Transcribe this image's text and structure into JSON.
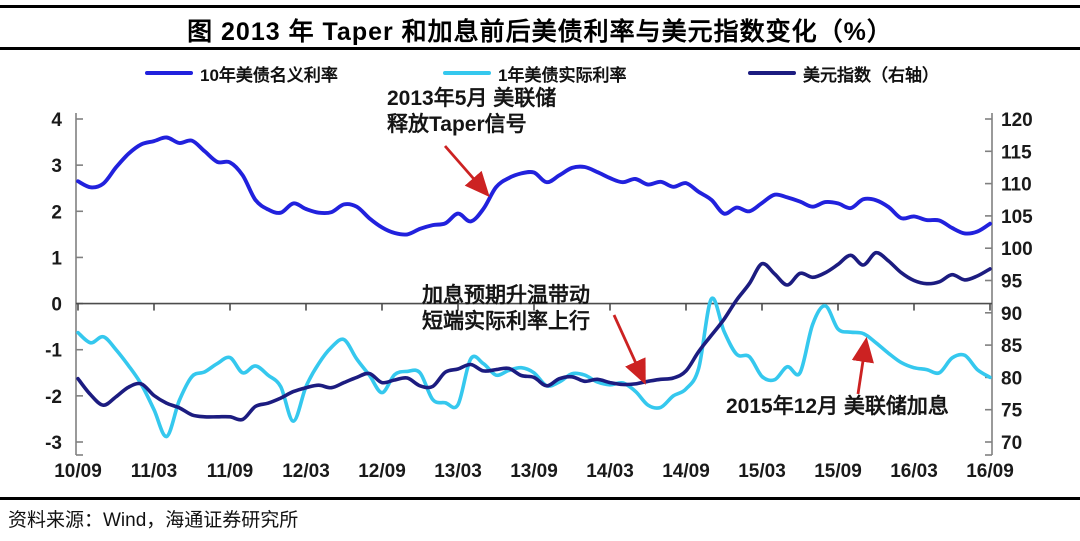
{
  "title": "图 2013 年 Taper 和加息前后美债利率与美元指数变化（%）",
  "legend": [
    {
      "label": "10年美债名义利率",
      "color": "#2121dd"
    },
    {
      "label": "1年美债实际利率",
      "color": "#35c8ee"
    },
    {
      "label": "美元指数（右轴）",
      "color": "#1c1c80"
    }
  ],
  "annotations": {
    "taper": {
      "line1": "2013年5月 美联储",
      "line2": "释放Taper信号"
    },
    "hike_expect": {
      "line1": "加息预期升温带动",
      "line2": "短端实际利率上行"
    },
    "hike": {
      "text": "2015年12月 美联储加息"
    }
  },
  "source": "资料来源：Wind，海通证券研究所",
  "arrow_color": "#cc2222",
  "chart_data": {
    "type": "line",
    "title": "图 2013 年 Taper 和加息前后美债利率与美元指数变化（%）",
    "x_start": "2010-09",
    "x_end": "2016-09",
    "x_step_months": 1,
    "x_tick_labels": [
      "10/09",
      "11/03",
      "11/09",
      "12/03",
      "12/09",
      "13/03",
      "13/09",
      "14/03",
      "14/09",
      "15/03",
      "15/09",
      "16/03",
      "16/09"
    ],
    "left_axis": {
      "ticks": [
        4,
        3,
        2,
        1,
        0,
        -1,
        -2,
        -3
      ],
      "range": [
        -3,
        4
      ],
      "unit": "%"
    },
    "right_axis": {
      "ticks": [
        120,
        115,
        110,
        105,
        100,
        95,
        90,
        85,
        80,
        75,
        70
      ],
      "range": [
        70,
        120
      ],
      "label": "美元指数（右轴）"
    },
    "grid": "zero-line-only",
    "legend_position": "top",
    "series": [
      {
        "name": "10年美债名义利率",
        "axis": "left",
        "color": "#2121dd",
        "values": [
          2.65,
          2.52,
          2.6,
          2.95,
          3.25,
          3.45,
          3.52,
          3.6,
          3.48,
          3.53,
          3.3,
          3.07,
          3.06,
          2.78,
          2.25,
          2.04,
          1.97,
          2.17,
          2.05,
          1.97,
          1.98,
          2.15,
          2.1,
          1.85,
          1.65,
          1.53,
          1.5,
          1.62,
          1.7,
          1.74,
          1.95,
          1.78,
          2.05,
          2.52,
          2.72,
          2.82,
          2.84,
          2.63,
          2.78,
          2.94,
          2.96,
          2.85,
          2.72,
          2.63,
          2.7,
          2.58,
          2.64,
          2.53,
          2.61,
          2.42,
          2.25,
          1.95,
          2.08,
          2.0,
          2.18,
          2.36,
          2.3,
          2.21,
          2.1,
          2.2,
          2.17,
          2.07,
          2.26,
          2.24,
          2.09,
          1.85,
          1.89,
          1.81,
          1.8,
          1.64,
          1.52,
          1.56,
          1.73
        ]
      },
      {
        "name": "1年美债实际利率",
        "axis": "left",
        "color": "#35c8ee",
        "values": [
          -0.63,
          -0.85,
          -0.72,
          -1.0,
          -1.35,
          -1.75,
          -2.3,
          -2.88,
          -2.1,
          -1.58,
          -1.48,
          -1.3,
          -1.17,
          -1.5,
          -1.35,
          -1.55,
          -1.8,
          -2.55,
          -1.8,
          -1.3,
          -0.95,
          -0.78,
          -1.2,
          -1.55,
          -1.93,
          -1.54,
          -1.47,
          -1.5,
          -2.08,
          -2.15,
          -2.19,
          -1.2,
          -1.3,
          -1.55,
          -1.45,
          -1.39,
          -1.5,
          -1.78,
          -1.7,
          -1.52,
          -1.55,
          -1.7,
          -1.76,
          -1.72,
          -1.9,
          -2.2,
          -2.25,
          -2.0,
          -1.85,
          -1.4,
          0.1,
          -0.6,
          -1.1,
          -1.15,
          -1.58,
          -1.65,
          -1.37,
          -1.5,
          -0.45,
          -0.05,
          -0.55,
          -0.62,
          -0.65,
          -0.85,
          -1.08,
          -1.28,
          -1.39,
          -1.43,
          -1.5,
          -1.18,
          -1.12,
          -1.43,
          -1.6
        ]
      },
      {
        "name": "美元指数（右轴）",
        "axis": "right",
        "color": "#1c1c80",
        "values": [
          79.8,
          77.3,
          75.7,
          77.0,
          78.5,
          79.0,
          77.2,
          76.0,
          75.3,
          74.2,
          73.9,
          73.9,
          73.9,
          73.5,
          75.5,
          76.0,
          76.8,
          77.8,
          78.4,
          78.8,
          78.4,
          79.2,
          80.0,
          80.6,
          79.2,
          79.6,
          79.9,
          78.7,
          78.6,
          80.8,
          81.3,
          82.0,
          81.0,
          81.2,
          81.4,
          80.3,
          80.0,
          78.7,
          79.8,
          80.1,
          79.4,
          79.7,
          79.2,
          78.9,
          79.0,
          79.4,
          79.7,
          79.9,
          81.0,
          84.0,
          86.5,
          89.0,
          92.0,
          94.5,
          97.6,
          96.0,
          94.3,
          96.1,
          95.5,
          96.2,
          97.5,
          98.9,
          97.4,
          99.3,
          98.0,
          96.2,
          95.0,
          94.5,
          94.8,
          95.9,
          95.1,
          95.7,
          96.8
        ]
      }
    ]
  }
}
